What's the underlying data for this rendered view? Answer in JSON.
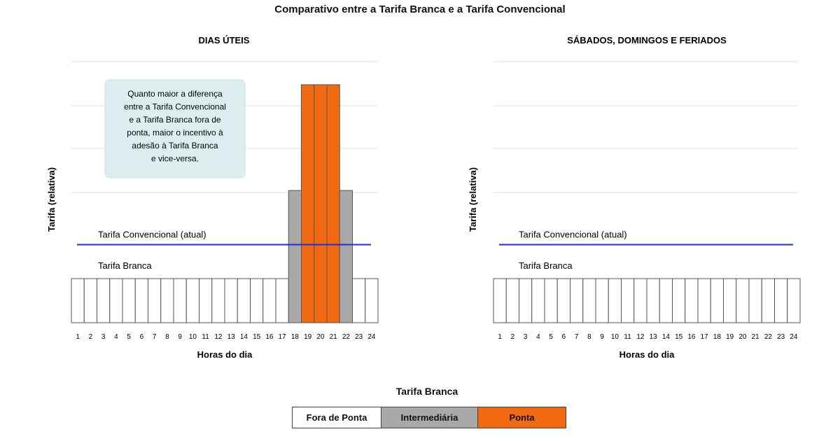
{
  "title": "Comparativo entre a Tarifa Branca e a Tarifa Convencional",
  "annotation": [
    "Quanto maior a diferença",
    "entre a Tarifa Convencional",
    "e a Tarifa Branca fora de",
    "ponta, maior o incentivo à",
    "adesão à Tarifa Branca",
    "e vice-versa."
  ],
  "legend": {
    "title": "Tarifa Branca",
    "items": [
      {
        "label": "Fora de Ponta",
        "color": "#ffffff"
      },
      {
        "label": "Intermediária",
        "color": "#a9a9a9"
      },
      {
        "label": "Ponta",
        "color": "#f26a10"
      }
    ]
  },
  "chart_data": [
    {
      "type": "bar",
      "title": "DIAS ÚTEIS",
      "xlabel": "Horas do dia",
      "ylabel": "Tarifa (relativa)",
      "categories": [
        "1",
        "2",
        "3",
        "4",
        "5",
        "6",
        "7",
        "8",
        "9",
        "10",
        "11",
        "12",
        "13",
        "14",
        "15",
        "16",
        "17",
        "18",
        "19",
        "20",
        "21",
        "22",
        "23",
        "24"
      ],
      "values": [
        1,
        1,
        1,
        1,
        1,
        1,
        1,
        1,
        1,
        1,
        1,
        1,
        1,
        1,
        1,
        1,
        1,
        3,
        5.4,
        5.4,
        5.4,
        3,
        1,
        1
      ],
      "period": [
        "Fora de Ponta",
        "Fora de Ponta",
        "Fora de Ponta",
        "Fora de Ponta",
        "Fora de Ponta",
        "Fora de Ponta",
        "Fora de Ponta",
        "Fora de Ponta",
        "Fora de Ponta",
        "Fora de Ponta",
        "Fora de Ponta",
        "Fora de Ponta",
        "Fora de Ponta",
        "Fora de Ponta",
        "Fora de Ponta",
        "Fora de Ponta",
        "Fora de Ponta",
        "Intermediária",
        "Ponta",
        "Ponta",
        "Ponta",
        "Intermediária",
        "Fora de Ponta",
        "Fora de Ponta"
      ],
      "reference_line": {
        "label": "Tarifa Convencional (atual)",
        "value": 1.77,
        "color": "#2a2ad0"
      },
      "series_label": "Tarifa Branca",
      "ylim": [
        0,
        5.4
      ],
      "grid": true
    },
    {
      "type": "bar",
      "title": "SÁBADOS, DOMINGOS E FERIADOS",
      "xlabel": "Horas do dia",
      "ylabel": "Tarifa (relativa)",
      "categories": [
        "1",
        "2",
        "3",
        "4",
        "5",
        "6",
        "7",
        "8",
        "9",
        "10",
        "11",
        "12",
        "13",
        "14",
        "15",
        "16",
        "17",
        "18",
        "19",
        "20",
        "21",
        "22",
        "23",
        "24"
      ],
      "values": [
        1,
        1,
        1,
        1,
        1,
        1,
        1,
        1,
        1,
        1,
        1,
        1,
        1,
        1,
        1,
        1,
        1,
        1,
        1,
        1,
        1,
        1,
        1,
        1
      ],
      "period": [
        "Fora de Ponta",
        "Fora de Ponta",
        "Fora de Ponta",
        "Fora de Ponta",
        "Fora de Ponta",
        "Fora de Ponta",
        "Fora de Ponta",
        "Fora de Ponta",
        "Fora de Ponta",
        "Fora de Ponta",
        "Fora de Ponta",
        "Fora de Ponta",
        "Fora de Ponta",
        "Fora de Ponta",
        "Fora de Ponta",
        "Fora de Ponta",
        "Fora de Ponta",
        "Fora de Ponta",
        "Fora de Ponta",
        "Fora de Ponta",
        "Fora de Ponta",
        "Fora de Ponta",
        "Fora de Ponta",
        "Fora de Ponta"
      ],
      "reference_line": {
        "label": "Tarifa Convencional (atual)",
        "value": 1.77,
        "color": "#2a2ad0"
      },
      "series_label": "Tarifa Branca",
      "ylim": [
        0,
        5.4
      ],
      "grid": true
    }
  ]
}
